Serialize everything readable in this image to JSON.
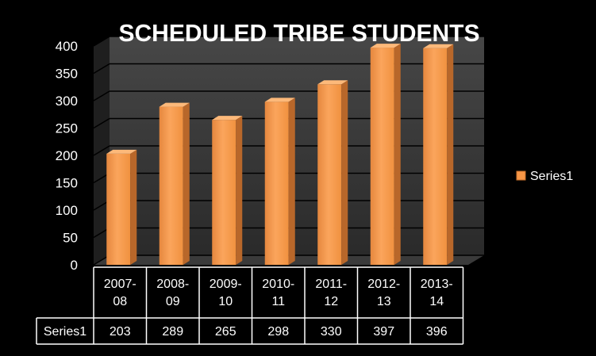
{
  "chart_data": {
    "type": "bar",
    "title": "SCHEDULED TRIBE STUDENTS",
    "categories": [
      "2007-08",
      "2008-09",
      "2009-10",
      "2010-11",
      "2011-12",
      "2012-13",
      "2013-14"
    ],
    "series": [
      {
        "name": "Series1",
        "values": [
          203,
          289,
          265,
          298,
          330,
          397,
          396
        ]
      }
    ],
    "y_ticks": [
      "0",
      "50",
      "100",
      "150",
      "200",
      "250",
      "300",
      "350",
      "400"
    ],
    "ylim": [
      0,
      400
    ],
    "grid": true,
    "legend": "right",
    "data_table": true,
    "bar_color": "#F79646",
    "background": "#000000"
  }
}
